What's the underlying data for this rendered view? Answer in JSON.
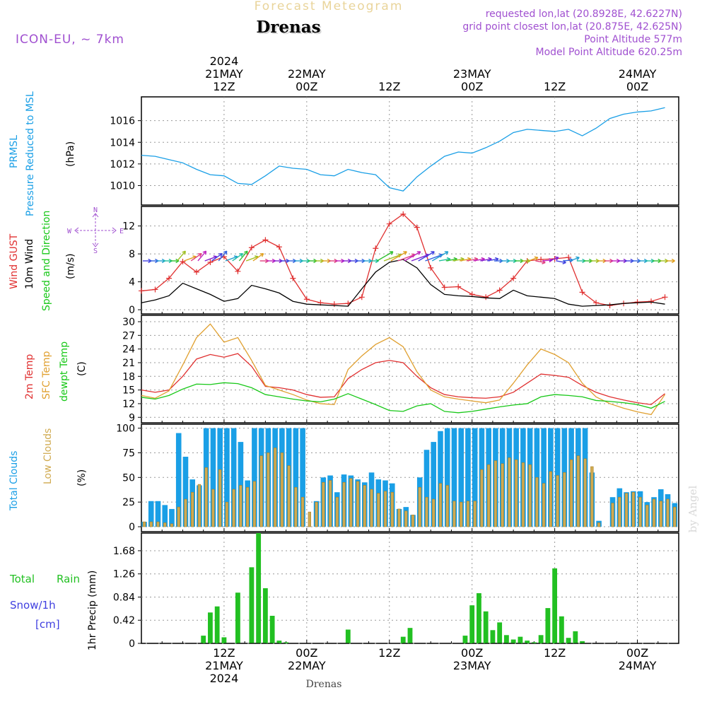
{
  "header": {
    "app_title": "Forecast Meteogram",
    "location": "Drenas",
    "model": "ICON-EU, ~ 7km",
    "requested": "requested lon,lat (20.8928E, 42.6227N)",
    "grid_point": "grid point closest lon,lat (20.875E, 42.625N)",
    "point_alt": "Point Altitude 577m",
    "model_alt": "Model Point Altitude 620.25m",
    "footer_location": "Drenas",
    "watermark": "by Angel"
  },
  "colors": {
    "prmsl": "#1a9fe6",
    "gust": "#e03030",
    "wind": "#000000",
    "temp": "#e03030",
    "sfc": "#e0a030",
    "dewpt": "#18c818",
    "total_cloud": "#1a9fe6",
    "low_cloud": "#d0aa50",
    "rain": "#22c022",
    "purple": "#a050d0",
    "snow": "#4040e0"
  },
  "time_axis": {
    "top": [
      {
        "t": 12,
        "l1": "2024",
        "l2": "21MAY",
        "l3": "12Z"
      },
      {
        "t": 24,
        "l1": "",
        "l2": "22MAY",
        "l3": "00Z"
      },
      {
        "t": 36,
        "l1": "",
        "l2": "",
        "l3": "12Z"
      },
      {
        "t": 48,
        "l1": "",
        "l2": "23MAY",
        "l3": "00Z"
      },
      {
        "t": 60,
        "l1": "",
        "l2": "",
        "l3": "12Z"
      },
      {
        "t": 72,
        "l1": "",
        "l2": "24MAY",
        "l3": "00Z"
      }
    ],
    "bottom": [
      {
        "t": 12,
        "l1": "12Z",
        "l2": "21MAY",
        "l3": "2024"
      },
      {
        "t": 24,
        "l1": "00Z",
        "l2": "22MAY",
        "l3": ""
      },
      {
        "t": 36,
        "l1": "12Z",
        "l2": "",
        "l3": ""
      },
      {
        "t": 48,
        "l1": "00Z",
        "l2": "23MAY",
        "l3": ""
      },
      {
        "t": 60,
        "l1": "12Z",
        "l2": "",
        "l3": ""
      },
      {
        "t": 72,
        "l1": "00Z",
        "l2": "24MAY",
        "l3": ""
      }
    ]
  },
  "labels": {
    "p1": {
      "name": "PRMSL",
      "desc": "Pressure Reduced to MSL",
      "unit": "(hPa)"
    },
    "p2": {
      "gust": "Wind GUST",
      "wind": "10m Wind",
      "dir": "Speed and Direction",
      "unit": "(m/s)",
      "compass_n": "N",
      "compass_s": "S",
      "compass_w": "W",
      "compass_e": "E"
    },
    "p3": {
      "temp": "2m Temp",
      "sfc": "SFC Temp",
      "dewpt": "dewpt Temp",
      "unit": "(C)"
    },
    "p4": {
      "total": "Total Clouds",
      "low": "Low Clouds",
      "unit": "(%)"
    },
    "p5": {
      "total": "Total",
      "rain": "Rain",
      "snow": "Snow/1h",
      "snow_unit": "[cm]",
      "precip": "1hr Precip (mm)"
    }
  },
  "chart_data": [
    {
      "type": "line",
      "title": "PRMSL Pressure Reduced to MSL",
      "ylabel": "(hPa)",
      "ylim": [
        1008.2,
        1018.2
      ],
      "yticks": [
        "1010",
        "1012",
        "1014",
        "1016"
      ],
      "x_hours": [
        0,
        2,
        4,
        6,
        8,
        10,
        12,
        14,
        16,
        18,
        20,
        22,
        24,
        26,
        28,
        30,
        32,
        34,
        36,
        38,
        40,
        42,
        44,
        46,
        48,
        50,
        52,
        54,
        56,
        58,
        60,
        62,
        64,
        66,
        68,
        70,
        72,
        74,
        76
      ],
      "series": [
        {
          "name": "PRMSL",
          "values": [
            1012.8,
            1012.7,
            1012.4,
            1012.1,
            1011.5,
            1011.0,
            1010.9,
            1010.2,
            1010.1,
            1010.9,
            1011.8,
            1011.6,
            1011.5,
            1011.0,
            1010.9,
            1011.5,
            1011.2,
            1011.0,
            1009.8,
            1009.5,
            1010.8,
            1011.8,
            1012.7,
            1013.1,
            1013.0,
            1013.5,
            1014.1,
            1014.9,
            1015.2,
            1015.1,
            1015.0,
            1015.2,
            1014.6,
            1015.3,
            1016.2,
            1016.6,
            1016.8,
            1016.9,
            1017.2
          ]
        }
      ]
    },
    {
      "type": "line",
      "title": "Wind GUST / 10m Wind Speed and Direction",
      "ylabel": "(m/s)",
      "ylim": [
        -0.6,
        14.8
      ],
      "yticks": [
        "0",
        "4",
        "8",
        "12"
      ],
      "x_hours": [
        0,
        2,
        4,
        6,
        8,
        10,
        12,
        14,
        16,
        18,
        20,
        22,
        24,
        26,
        28,
        30,
        32,
        34,
        36,
        38,
        40,
        42,
        44,
        46,
        48,
        50,
        52,
        54,
        56,
        58,
        60,
        62,
        64,
        66,
        68,
        70,
        72,
        74,
        76
      ],
      "series": [
        {
          "name": "Wind GUST",
          "values": [
            2.7,
            2.9,
            4.5,
            6.9,
            5.4,
            6.8,
            7.6,
            5.5,
            8.9,
            10.0,
            9.0,
            4.5,
            1.5,
            1.0,
            0.8,
            0.9,
            1.8,
            8.8,
            12.3,
            13.7,
            11.8,
            6.0,
            3.2,
            3.3,
            2.2,
            1.8,
            2.8,
            4.5,
            7.0,
            7.2,
            7.3,
            7.5,
            2.5,
            1.0,
            0.6,
            0.9,
            1.1,
            1.2,
            1.8
          ]
        },
        {
          "name": "10m Wind",
          "values": [
            1.0,
            1.4,
            2.0,
            3.8,
            3.0,
            2.2,
            1.2,
            1.6,
            3.5,
            3.0,
            2.4,
            1.2,
            0.8,
            0.7,
            0.6,
            0.5,
            3.0,
            5.4,
            6.8,
            7.2,
            6.0,
            3.6,
            2.2,
            2.0,
            1.9,
            1.7,
            1.6,
            2.8,
            2.0,
            1.8,
            1.6,
            0.8,
            0.5,
            0.6,
            0.7,
            0.9,
            1.0,
            1.1,
            0.8
          ]
        }
      ]
    },
    {
      "type": "line",
      "title": "2m Temp / SFC Temp / dewpt Temp",
      "ylabel": "(C)",
      "ylim": [
        7.8,
        31.4
      ],
      "yticks": [
        "9",
        "12",
        "15",
        "18",
        "21",
        "24",
        "27",
        "30"
      ],
      "x_hours": [
        0,
        2,
        4,
        6,
        8,
        10,
        12,
        14,
        16,
        18,
        20,
        22,
        24,
        26,
        28,
        30,
        32,
        34,
        36,
        38,
        40,
        42,
        44,
        46,
        48,
        50,
        52,
        54,
        56,
        58,
        60,
        62,
        64,
        66,
        68,
        70,
        72,
        74,
        76
      ],
      "series": [
        {
          "name": "2m Temp",
          "values": [
            15.0,
            14.5,
            15.0,
            18.0,
            21.8,
            22.8,
            22.2,
            23.0,
            20.2,
            15.8,
            15.5,
            15.0,
            14.0,
            13.4,
            13.5,
            17.5,
            19.5,
            21.0,
            21.5,
            21.0,
            18.0,
            15.5,
            14.0,
            13.5,
            13.3,
            13.2,
            13.5,
            14.5,
            16.5,
            18.5,
            18.2,
            17.8,
            16.0,
            14.5,
            13.5,
            12.8,
            12.2,
            11.8,
            14.2
          ]
        },
        {
          "name": "SFC Temp",
          "values": [
            13.8,
            13.2,
            14.8,
            20.5,
            26.5,
            29.5,
            25.5,
            26.5,
            21.5,
            16.0,
            15.0,
            14.0,
            12.8,
            12.0,
            11.8,
            19.5,
            22.5,
            25.0,
            26.5,
            24.5,
            19.0,
            15.0,
            13.5,
            13.0,
            12.6,
            12.2,
            12.8,
            16.5,
            20.5,
            24.0,
            22.8,
            21.0,
            16.5,
            13.5,
            12.0,
            11.0,
            10.2,
            9.6,
            14.0
          ]
        },
        {
          "name": "dewpt Temp",
          "values": [
            13.4,
            13.0,
            13.8,
            15.2,
            16.3,
            16.2,
            16.6,
            16.4,
            15.5,
            14.0,
            13.5,
            13.0,
            12.6,
            12.4,
            13.0,
            14.2,
            13.0,
            11.8,
            10.5,
            10.3,
            11.5,
            12.0,
            10.3,
            10.0,
            10.3,
            10.8,
            11.3,
            11.7,
            12.0,
            13.5,
            14.0,
            13.8,
            13.5,
            12.7,
            12.5,
            12.2,
            11.8,
            11.0,
            12.5
          ]
        }
      ]
    },
    {
      "type": "bar",
      "title": "Total Clouds / Low Clouds",
      "ylabel": "(%)",
      "ylim": [
        -5,
        104
      ],
      "yticks": [
        "0",
        "25",
        "50",
        "75",
        "100"
      ],
      "x_hours": [
        0,
        1,
        2,
        3,
        4,
        5,
        6,
        7,
        8,
        9,
        10,
        11,
        12,
        13,
        14,
        15,
        16,
        17,
        18,
        19,
        20,
        21,
        22,
        23,
        24,
        25,
        26,
        27,
        28,
        29,
        30,
        31,
        32,
        33,
        34,
        35,
        36,
        37,
        38,
        39,
        40,
        41,
        42,
        43,
        44,
        45,
        46,
        47,
        48,
        49,
        50,
        51,
        52,
        53,
        54,
        55,
        56,
        57,
        58,
        59,
        60,
        61,
        62,
        63,
        64,
        65,
        66,
        67,
        68,
        69,
        70,
        71,
        72,
        73,
        74,
        75,
        76,
        77
      ],
      "series": [
        {
          "name": "Total Clouds",
          "values": [
            5,
            26,
            26,
            22,
            18,
            95,
            71,
            48,
            42,
            100,
            100,
            100,
            100,
            100,
            86,
            47,
            100,
            100,
            100,
            100,
            100,
            100,
            100,
            100,
            0,
            26,
            50,
            52,
            35,
            53,
            52,
            48,
            45,
            55,
            48,
            47,
            44,
            18,
            20,
            12,
            50,
            78,
            86,
            97,
            100,
            100,
            100,
            100,
            100,
            100,
            100,
            100,
            100,
            100,
            100,
            100,
            100,
            100,
            100,
            100,
            100,
            100,
            100,
            100,
            100,
            55,
            6,
            0,
            30,
            39,
            35,
            36,
            36,
            25,
            30,
            38,
            33,
            24
          ]
        },
        {
          "name": "Low Clouds",
          "values": [
            5,
            5,
            5,
            4,
            3,
            20,
            28,
            35,
            43,
            60,
            38,
            58,
            25,
            38,
            42,
            40,
            46,
            72,
            75,
            80,
            75,
            62,
            40,
            30,
            15,
            25,
            45,
            47,
            30,
            45,
            49,
            46,
            42,
            38,
            34,
            36,
            35,
            18,
            16,
            12,
            40,
            30,
            28,
            44,
            42,
            26,
            25,
            26,
            26,
            58,
            63,
            67,
            64,
            70,
            68,
            65,
            63,
            50,
            44,
            56,
            52,
            55,
            68,
            72,
            69,
            61,
            4,
            0,
            24,
            30,
            34,
            35,
            30,
            22,
            28,
            26,
            28,
            20
          ]
        }
      ]
    },
    {
      "type": "bar",
      "title": "1hr Precip (mm)",
      "ylabel": "1hr Precip (mm)",
      "ylim": [
        0,
        2.0
      ],
      "yticks": [
        "0",
        "0.42",
        "0.84",
        "1.26",
        "1.68"
      ],
      "x_hours": [
        9,
        10,
        11,
        12,
        14,
        16,
        17,
        18,
        19,
        20,
        21,
        30,
        38,
        39,
        47,
        48,
        49,
        50,
        51,
        52,
        53,
        54,
        55,
        56,
        57,
        58,
        59,
        60,
        61,
        62,
        63,
        64,
        65
      ],
      "series": [
        {
          "name": "Total Rain",
          "values": [
            0.14,
            0.56,
            0.67,
            0.11,
            0.92,
            1.38,
            2.0,
            1.0,
            0.5,
            0.05,
            0.02,
            0.25,
            0.12,
            0.28,
            0.14,
            0.69,
            0.91,
            0.58,
            0.24,
            0.38,
            0.15,
            0.07,
            0.12,
            0.05,
            0.02,
            0.15,
            0.64,
            1.36,
            0.49,
            0.1,
            0.22,
            0.04,
            0.0
          ]
        }
      ]
    }
  ]
}
